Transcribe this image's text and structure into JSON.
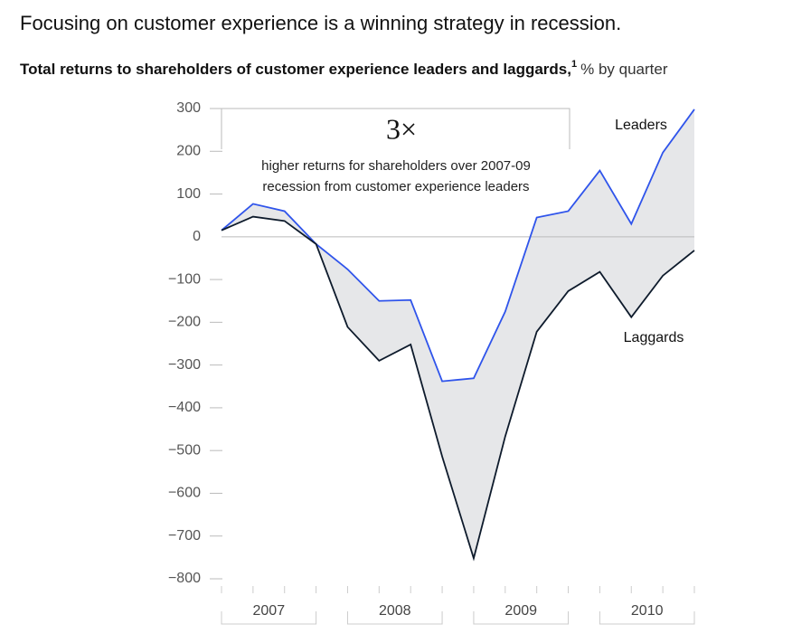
{
  "chart_data": {
    "type": "line",
    "title": "Focusing on customer experience is a winning strategy in recession.",
    "subtitle": "Total returns to shareholders of customer experience leaders and laggards,",
    "footnote_marker": "1",
    "subtitle_unit": "% by quarter",
    "annotation_big": "3×",
    "annotation_lines": [
      "higher returns for shareholders over 2007-09",
      "recession from customer experience leaders"
    ],
    "categories": [
      null,
      null,
      null,
      null,
      null,
      null,
      null,
      null,
      null,
      null,
      null,
      null,
      null,
      null,
      null,
      null
    ],
    "x_groups": [
      "2007",
      "2008",
      "2009",
      "2010"
    ],
    "series": [
      {
        "name": "Leaders",
        "color": "#2f54eb",
        "values": [
          15,
          77,
          60,
          -17,
          -76,
          -150,
          -148,
          -338,
          -331,
          -175,
          45,
          60,
          155,
          30,
          197,
          298
        ]
      },
      {
        "name": "Laggards",
        "color": "#0e1b2c",
        "values": [
          15,
          47,
          37,
          -17,
          -211,
          -290,
          -252,
          -514,
          -752,
          -467,
          -222,
          -127,
          -82,
          -188,
          -91,
          -32
        ]
      }
    ],
    "ylim": [
      -800,
      300
    ],
    "yticks": [
      {
        "value": -800,
        "label": "−800"
      },
      {
        "value": -700,
        "label": "−700"
      },
      {
        "value": -600,
        "label": "−600"
      },
      {
        "value": -500,
        "label": "−500"
      },
      {
        "value": -400,
        "label": "−400"
      },
      {
        "value": -300,
        "label": "−300"
      },
      {
        "value": -200,
        "label": "−200"
      },
      {
        "value": -100,
        "label": "−100"
      },
      0,
      100,
      200,
      300
    ],
    "fill_between": "#e6e7e9"
  }
}
